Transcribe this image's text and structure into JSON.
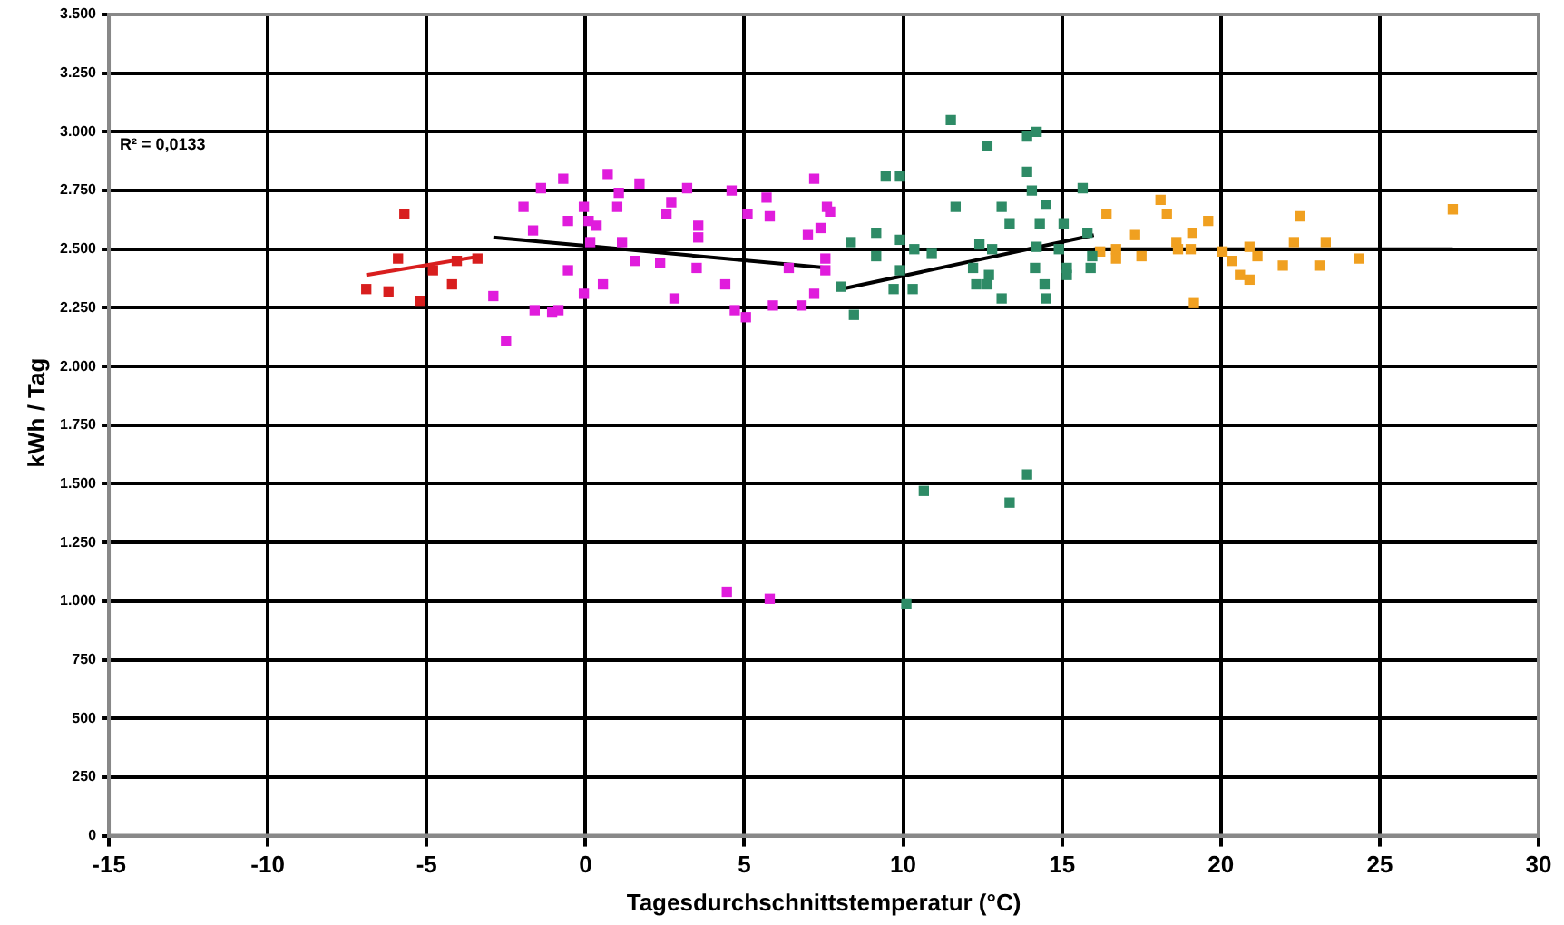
{
  "chart_data": {
    "type": "scatter",
    "xlabel": "Tagesdurchschnittstemperatur (°C)",
    "ylabel": "kWh / Tag",
    "annotations": [
      "R² = 0,0133"
    ],
    "marker": "square",
    "grid": true,
    "xlim": [
      -15,
      30
    ],
    "xticks": [
      -15,
      -10,
      -5,
      0,
      5,
      10,
      15,
      20,
      25,
      30
    ],
    "ylim": [
      0,
      3500
    ],
    "yticks": [
      0,
      {
        "value": 250,
        "label": "250"
      },
      {
        "value": 500,
        "label": "500"
      },
      {
        "value": 750,
        "label": "750"
      },
      {
        "value": 1000,
        "label": "1.000"
      },
      {
        "value": 1250,
        "label": "1.250"
      },
      {
        "value": 1500,
        "label": "1.500"
      },
      {
        "value": 1750,
        "label": "1.750"
      },
      {
        "value": 2000,
        "label": "2.000"
      },
      {
        "value": 2250,
        "label": "2.250"
      },
      {
        "value": 2500,
        "label": "2.500"
      },
      {
        "value": 2750,
        "label": "2.750"
      },
      {
        "value": 3000,
        "label": "3.000"
      },
      {
        "value": 3250,
        "label": "3.250"
      },
      {
        "value": 3500,
        "label": "3.500"
      }
    ],
    "series": [
      {
        "color": "#d81e1e",
        "x": [
          -5.7,
          -5.9,
          -6.9,
          -6.2,
          -5.2,
          -4.8,
          -4.2,
          -4.05,
          -3.4
        ],
        "values": [
          2650,
          2460,
          2330,
          2320,
          2280,
          2410,
          2350,
          2450,
          2460
        ]
      },
      {
        "color": "#e01cdc",
        "x": [
          -0.7,
          0.7,
          1.7,
          3.2,
          4.6,
          5.7,
          7.2,
          1.05,
          1.0,
          2.7,
          2.55,
          -0.05,
          -0.55,
          0.1,
          0.35,
          3.55,
          5.1,
          5.8,
          7.6,
          7.7,
          7.4,
          7.0,
          3.55,
          1.15,
          0.15,
          1.55,
          2.35,
          3.5,
          -0.55,
          7.55,
          7.55,
          6.4,
          0.55,
          4.4,
          -0.05,
          2.8,
          7.2,
          6.8,
          5.9,
          4.7,
          5.05,
          -0.85,
          -1.95,
          -1.4,
          -1.65,
          -2.5,
          -2.9,
          -1.05,
          -1.6,
          4.45,
          5.8
        ],
        "values": [
          2800,
          2820,
          2780,
          2760,
          2750,
          2720,
          2800,
          2740,
          2680,
          2700,
          2650,
          2680,
          2620,
          2620,
          2600,
          2600,
          2650,
          2640,
          2680,
          2660,
          2590,
          2560,
          2550,
          2530,
          2530,
          2450,
          2440,
          2420,
          2410,
          2460,
          2410,
          2420,
          2350,
          2350,
          2310,
          2290,
          2310,
          2260,
          2260,
          2240,
          2210,
          2240,
          2680,
          2760,
          2580,
          2110,
          2300,
          2230,
          2240,
          1040,
          1010
        ]
      },
      {
        "color": "#2e8b66",
        "x": [
          11.5,
          12.65,
          13.9,
          14.2,
          9.45,
          9.9,
          13.9,
          14.05,
          14.5,
          15.65,
          11.65,
          13.1,
          13.35,
          14.3,
          15.05,
          8.35,
          9.15,
          9.9,
          10.35,
          10.9,
          12.4,
          12.8,
          14.2,
          14.9,
          15.8,
          15.95,
          9.15,
          9.9,
          12.2,
          12.7,
          14.15,
          15.15,
          15.9,
          8.05,
          9.7,
          10.3,
          12.3,
          12.65,
          14.45,
          15.15,
          13.1,
          14.5,
          8.45,
          10.65,
          13.35,
          13.9,
          10.1
        ],
        "values": [
          3050,
          2940,
          2980,
          3000,
          2810,
          2810,
          2830,
          2750,
          2690,
          2760,
          2680,
          2680,
          2610,
          2610,
          2610,
          2530,
          2570,
          2540,
          2500,
          2480,
          2520,
          2500,
          2510,
          2500,
          2570,
          2470,
          2470,
          2410,
          2420,
          2390,
          2420,
          2420,
          2420,
          2340,
          2330,
          2330,
          2350,
          2350,
          2350,
          2390,
          2290,
          2290,
          2220,
          1470,
          1420,
          1540,
          990
        ]
      },
      {
        "color": "#f0a020",
        "x": [
          16.4,
          18.1,
          18.3,
          19.6,
          22.5,
          27.3,
          17.3,
          18.6,
          19.1,
          19.05,
          16.7,
          16.2,
          17.5,
          18.65,
          20.05,
          20.9,
          22.3,
          23.3,
          24.35,
          20.35,
          21.95,
          23.1,
          20.6,
          20.9,
          19.15,
          16.7,
          21.15
        ],
        "values": [
          2650,
          2710,
          2650,
          2620,
          2640,
          2670,
          2560,
          2530,
          2570,
          2500,
          2500,
          2490,
          2470,
          2500,
          2490,
          2510,
          2530,
          2530,
          2460,
          2450,
          2430,
          2430,
          2390,
          2370,
          2270,
          2460,
          2470
        ]
      },
      {
        "type": "line",
        "marker": "none",
        "color": "#d81e1e",
        "x": [
          -6.9,
          -3.3
        ],
        "values": [
          2390,
          2470
        ]
      },
      {
        "type": "line",
        "marker": "none",
        "color": "#000000",
        "x": [
          -2.9,
          7.65
        ],
        "values": [
          2550,
          2420
        ]
      },
      {
        "type": "line",
        "marker": "none",
        "color": "#000000",
        "x": [
          8.05,
          16
        ],
        "values": [
          2330,
          2560
        ]
      },
      {
        "type": "line",
        "marker": "none",
        "color": "#000000",
        "x": [
          16,
          27.3
        ],
        "values": [
          2500,
          2500
        ]
      }
    ]
  }
}
